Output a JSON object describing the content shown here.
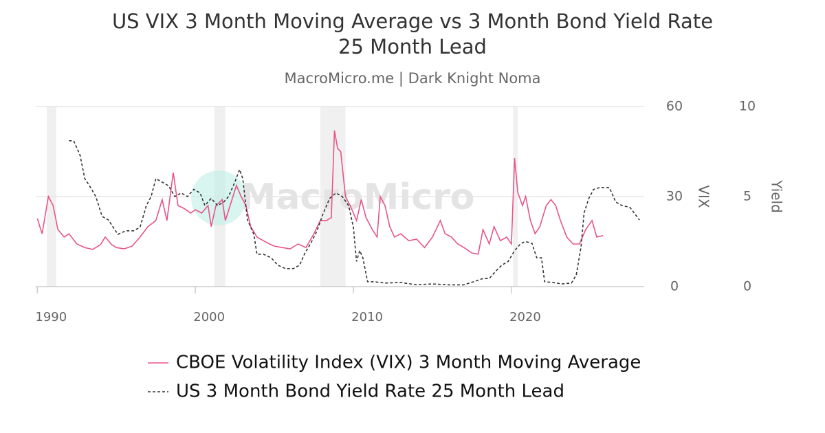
{
  "chart_data": {
    "type": "line",
    "title": "US VIX 3 Month Moving Average vs 3 Month Bond Yield Rate",
    "title_line2": "25 Month Lead",
    "subtitle": "MacroMicro.me | Dark Knight Noma",
    "watermark": "MacroMicro",
    "ylabel": "VIX",
    "y2label": "Yield",
    "xlim": [
      1989.9,
      2028.4
    ],
    "xticks": [
      1990,
      2000,
      2010,
      2020
    ],
    "ylim": [
      0,
      60
    ],
    "yticks": [
      0,
      30,
      60
    ],
    "y2lim": [
      0,
      10
    ],
    "y2ticks": [
      0,
      5,
      10
    ],
    "grid": true,
    "legend": "bottom",
    "shaded_periods": [
      [
        1990.6,
        1991.2
      ],
      [
        2001.2,
        2001.9
      ],
      [
        2007.9,
        2009.5
      ],
      [
        2020.1,
        2020.4
      ]
    ],
    "series": [
      {
        "name": "CBOE Volatility Index (VIX) 3 Month Moving Average",
        "color": "#e8548a",
        "dash": "none",
        "x": [
          1990.0,
          1990.3,
          1990.7,
          1991.0,
          1991.3,
          1991.7,
          1992.0,
          1992.5,
          1993.0,
          1993.5,
          1994.0,
          1994.3,
          1994.7,
          1995.0,
          1995.5,
          1996.0,
          1996.5,
          1997.0,
          1997.5,
          1997.9,
          1998.2,
          1998.6,
          1998.9,
          1999.3,
          1999.7,
          2000.0,
          2000.4,
          2000.8,
          2001.0,
          2001.3,
          2001.7,
          2001.9,
          2002.2,
          2002.6,
          2002.9,
          2003.2,
          2003.5,
          2003.9,
          2004.3,
          2004.7,
          2005.0,
          2005.5,
          2006.0,
          2006.5,
          2007.0,
          2007.5,
          2007.9,
          2008.3,
          2008.6,
          2008.8,
          2009.0,
          2009.2,
          2009.5,
          2009.8,
          2010.2,
          2010.5,
          2010.8,
          2011.2,
          2011.5,
          2011.7,
          2012.0,
          2012.3,
          2012.6,
          2013.0,
          2013.5,
          2014.0,
          2014.5,
          2015.0,
          2015.5,
          2015.8,
          2016.2,
          2016.6,
          2017.0,
          2017.5,
          2017.9,
          2018.2,
          2018.6,
          2018.9,
          2019.3,
          2019.7,
          2020.0,
          2020.2,
          2020.4,
          2020.7,
          2020.9,
          2021.2,
          2021.5,
          2021.8,
          2022.2,
          2022.5,
          2022.8,
          2023.1,
          2023.5,
          2023.9,
          2024.3,
          2024.7,
          2025.1,
          2025.4,
          2025.8
        ],
        "values": [
          22.7,
          17.6,
          30,
          27,
          19,
          16.5,
          17.6,
          14.2,
          13,
          12.4,
          14,
          16.5,
          14,
          13,
          12.6,
          13.5,
          16.5,
          20,
          22,
          29,
          22,
          38,
          27,
          26,
          24.5,
          25.6,
          24.5,
          27,
          20,
          27,
          29,
          22,
          27,
          33.7,
          30,
          27,
          20,
          16.5,
          15.3,
          14.2,
          13.5,
          13,
          12.6,
          14.2,
          13,
          17.6,
          22,
          22,
          23,
          52,
          46,
          45,
          30,
          27,
          22,
          29,
          23,
          19,
          16.5,
          30,
          27,
          20,
          16.5,
          17.6,
          15.3,
          15.8,
          13,
          16.5,
          22,
          17.6,
          16.5,
          14.2,
          13,
          11.2,
          10.8,
          19,
          14.2,
          20,
          15.3,
          16.5,
          14.2,
          42.8,
          31.4,
          27,
          30,
          22,
          17.6,
          20,
          27,
          29,
          27,
          22,
          16.5,
          14.2,
          14.2,
          19,
          22,
          16.5,
          17
        ]
      },
      {
        "name": "US 3 Month Bond Yield Rate 25 Month Lead",
        "color": "#333333",
        "dash": "4 3",
        "axis": "y2",
        "x": [
          1992.0,
          1992.3,
          1992.7,
          1993.0,
          1993.3,
          1993.7,
          1994.1,
          1994.5,
          1994.8,
          1995.1,
          1995.6,
          1996.1,
          1996.5,
          1996.9,
          1997.2,
          1997.5,
          1997.9,
          1998.3,
          1998.7,
          1999.1,
          1999.5,
          1999.9,
          2000.3,
          2000.6,
          2001.0,
          2001.4,
          2001.8,
          2002.1,
          2002.5,
          2002.8,
          2003.0,
          2003.3,
          2003.7,
          2003.9,
          2004.3,
          2004.8,
          2005.2,
          2005.7,
          2006.2,
          2006.6,
          2006.9,
          2007.3,
          2007.7,
          2008.1,
          2008.5,
          2008.9,
          2009.3,
          2009.7,
          2010.0,
          2010.2,
          2010.4,
          2010.6,
          2010.9,
          2011.3,
          2012.0,
          2013.0,
          2014.0,
          2015.0,
          2016.0,
          2017.0,
          2017.6,
          2018.2,
          2018.6,
          2019.0,
          2019.4,
          2019.8,
          2020.2,
          2020.6,
          2020.9,
          2021.3,
          2021.6,
          2021.9,
          2022.1,
          2022.6,
          2023.2,
          2023.8,
          2024.1,
          2024.4,
          2024.6,
          2024.9,
          2025.2,
          2025.6,
          2026.2,
          2026.6,
          2027.0,
          2027.5,
          2028.1
        ],
        "values": [
          8.1,
          8.1,
          7.3,
          6.0,
          5.6,
          5.0,
          3.9,
          3.7,
          3.3,
          2.9,
          3.1,
          3.1,
          3.3,
          4.5,
          5.0,
          6.0,
          5.8,
          5.6,
          5.0,
          5.2,
          5.0,
          5.4,
          5.2,
          4.5,
          4.9,
          4.5,
          4.7,
          5.0,
          5.8,
          6.5,
          6.0,
          3.7,
          2.9,
          1.8,
          1.8,
          1.6,
          1.2,
          1.0,
          1.0,
          1.2,
          1.8,
          2.4,
          3.1,
          4.1,
          4.9,
          5.2,
          5.0,
          4.5,
          3.3,
          1.4,
          2.0,
          1.6,
          0.27,
          0.27,
          0.2,
          0.23,
          0.1,
          0.15,
          0.1,
          0.1,
          0.27,
          0.45,
          0.45,
          0.85,
          1.2,
          1.4,
          2.0,
          2.4,
          2.5,
          2.4,
          1.6,
          1.6,
          0.27,
          0.23,
          0.15,
          0.2,
          0.65,
          2.2,
          4.1,
          4.9,
          5.4,
          5.5,
          5.5,
          4.7,
          4.5,
          4.4,
          3.7
        ]
      }
    ]
  }
}
